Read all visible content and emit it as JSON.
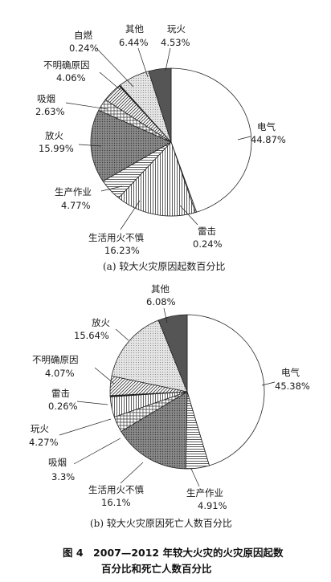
{
  "chart_data": [
    {
      "type": "pie",
      "title": "(a) 较大火灾原因起数百分比",
      "slices": [
        {
          "name": "电气",
          "value": 44.87,
          "value_label": "44.87%",
          "fill": "white"
        },
        {
          "name": "雷击",
          "value": 0.24,
          "value_label": "0.24%",
          "fill": "white"
        },
        {
          "name": "生活用火不慎",
          "value": 16.23,
          "value_label": "16.23%",
          "fill": "vlines"
        },
        {
          "name": "生产作业",
          "value": 4.77,
          "value_label": "4.77%",
          "fill": "hlines"
        },
        {
          "name": "放火",
          "value": 15.99,
          "value_label": "15.99%",
          "fill": "darkdots"
        },
        {
          "name": "吸烟",
          "value": 2.63,
          "value_label": "2.63%",
          "fill": "grid"
        },
        {
          "name": "不明确原因",
          "value": 4.06,
          "value_label": "4.06%",
          "fill": "diag"
        },
        {
          "name": "自燃",
          "value": 0.24,
          "value_label": "0.24%",
          "fill": "black"
        },
        {
          "name": "其他",
          "value": 6.44,
          "value_label": "6.44%",
          "fill": "lightdots"
        },
        {
          "name": "玩火",
          "value": 4.53,
          "value_label": "4.53%",
          "fill": "dark"
        }
      ]
    },
    {
      "type": "pie",
      "title": "(b) 较大火灾原因死亡人数百分比",
      "slices": [
        {
          "name": "电气",
          "value": 45.38,
          "value_label": "45.38%",
          "fill": "white"
        },
        {
          "name": "生产作业",
          "value": 4.91,
          "value_label": "4.91%",
          "fill": "hlines"
        },
        {
          "name": "生活用火不慎",
          "value": 16.1,
          "value_label": "16.1%",
          "fill": "darkdots"
        },
        {
          "name": "吸烟",
          "value": 3.3,
          "value_label": "3.3%",
          "fill": "grid"
        },
        {
          "name": "玩火",
          "value": 4.27,
          "value_label": "4.27%",
          "fill": "vlines"
        },
        {
          "name": "雷击",
          "value": 0.26,
          "value_label": "0.26%",
          "fill": "black"
        },
        {
          "name": "不明确原因",
          "value": 4.07,
          "value_label": "4.07%",
          "fill": "diag"
        },
        {
          "name": "放火",
          "value": 15.64,
          "value_label": "15.64%",
          "fill": "lightdots"
        },
        {
          "name": "其他",
          "value": 6.08,
          "value_label": "6.08%",
          "fill": "dark"
        }
      ]
    }
  ],
  "figure_caption": {
    "line1": "图 4　2007—2012 年较大火灾的火灾原因起数",
    "line2": "百分比和死亡人数百分比"
  }
}
